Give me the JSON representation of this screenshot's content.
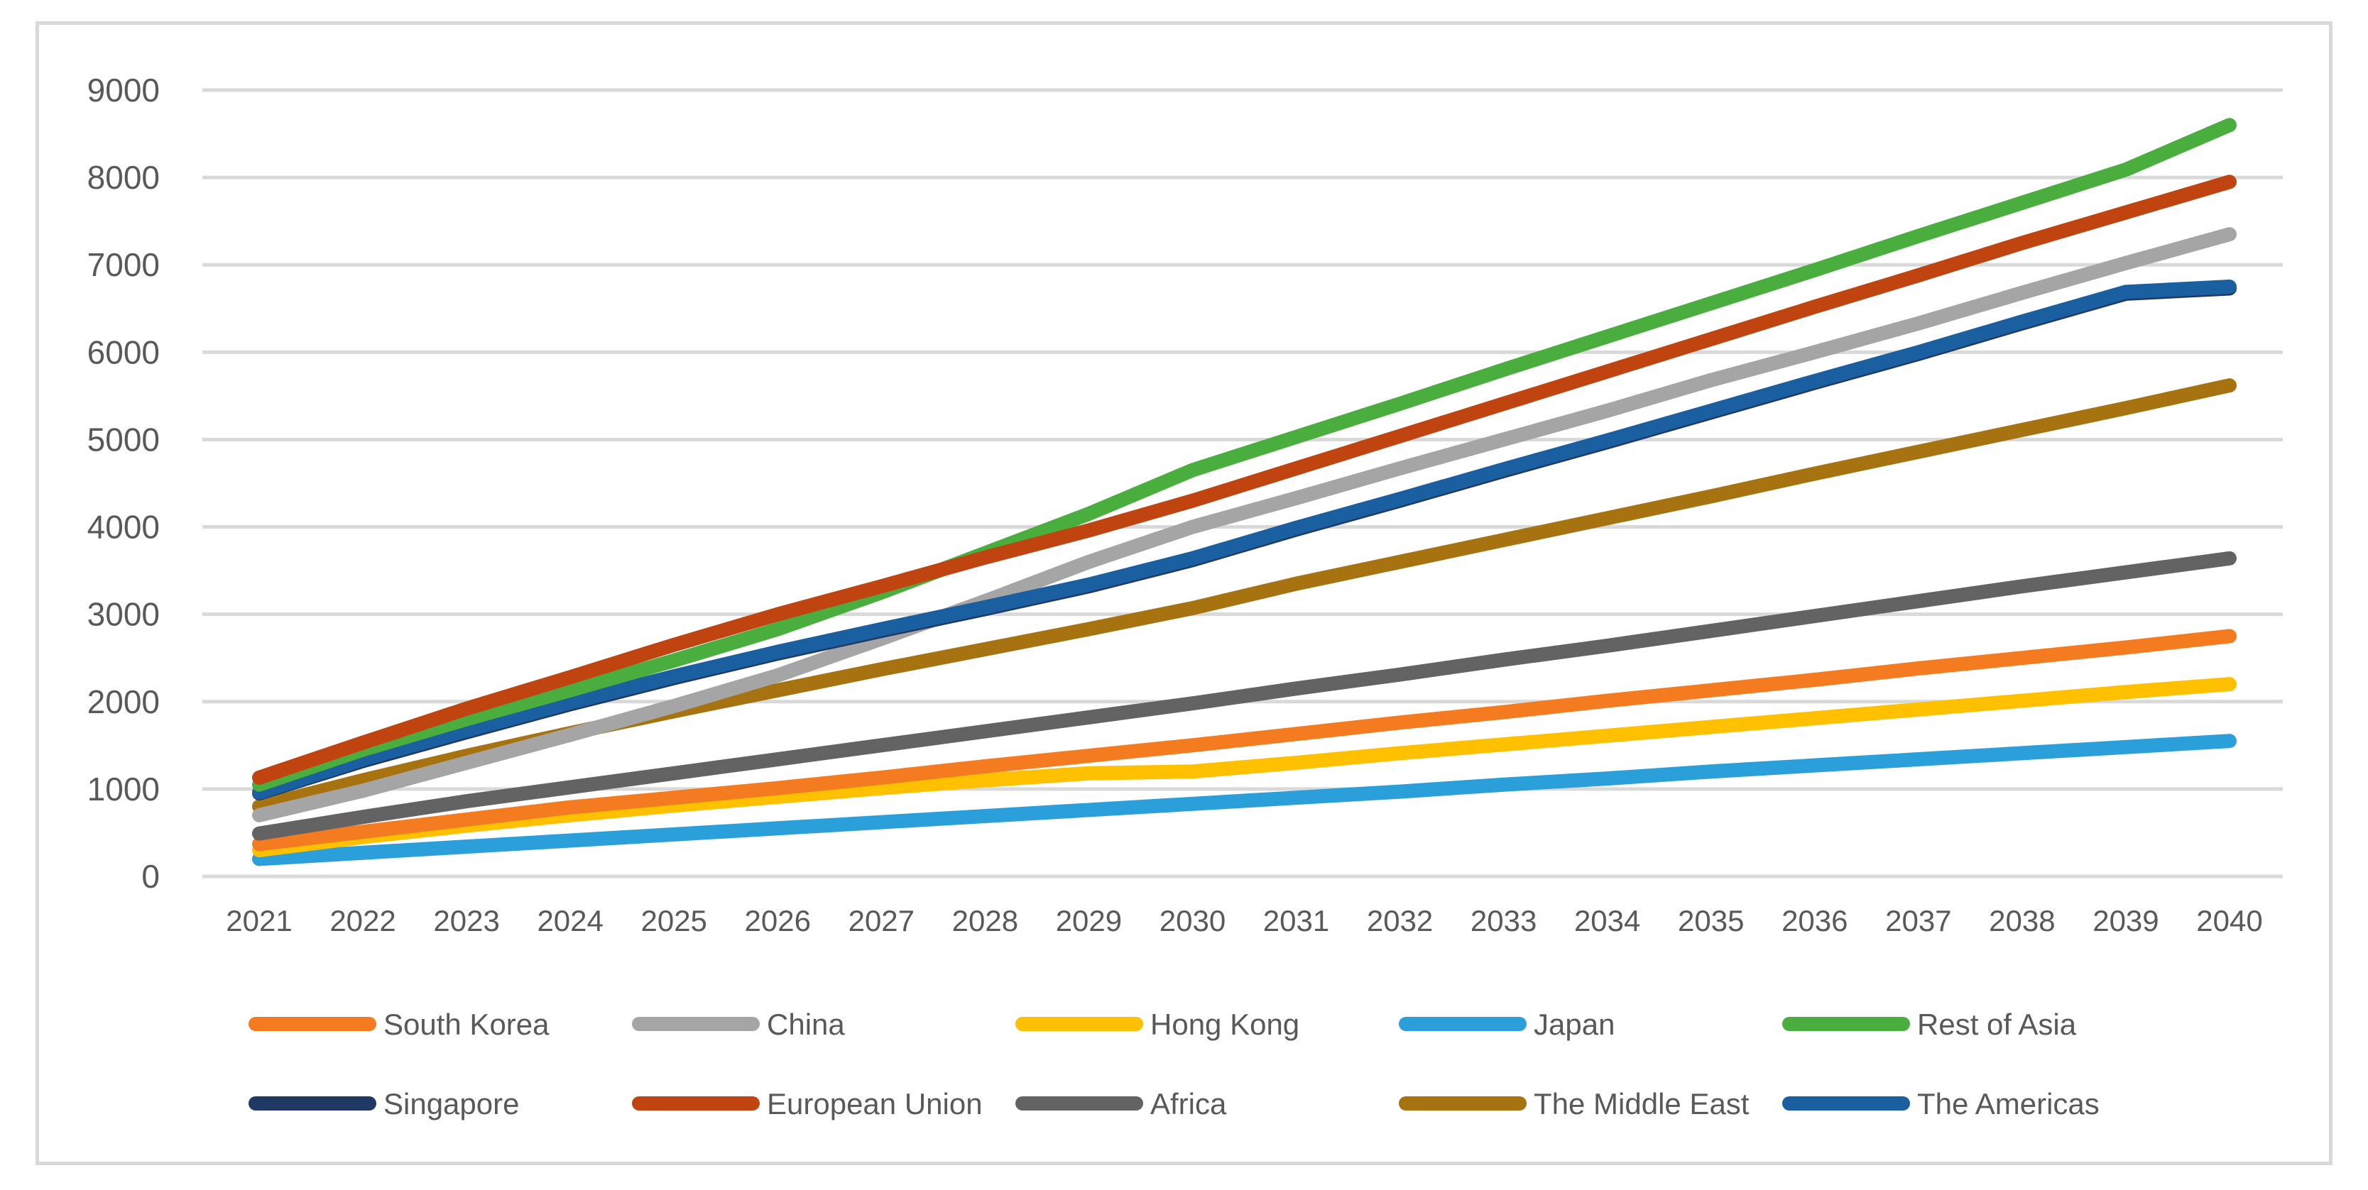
{
  "chart_data": {
    "type": "line",
    "title": "",
    "xlabel": "",
    "ylabel": "",
    "ylim": [
      0,
      9000
    ],
    "yticks": [
      "0",
      "1000",
      "2000",
      "3000",
      "4000",
      "5000",
      "6000",
      "7000",
      "8000",
      "9000"
    ],
    "grid": true,
    "legend_position": "bottom",
    "x": [
      "2021",
      "2022",
      "2023",
      "2024",
      "2025",
      "2026",
      "2027",
      "2028",
      "2029",
      "2030",
      "2031",
      "2032",
      "2033",
      "2034",
      "2035",
      "2036",
      "2037",
      "2038",
      "2039",
      "2040"
    ],
    "series": [
      {
        "name": "South Korea",
        "color": "#f47b20",
        "values": [
          370,
          510,
          650,
          790,
          900,
          1010,
          1130,
          1260,
          1380,
          1500,
          1630,
          1760,
          1880,
          2010,
          2130,
          2250,
          2380,
          2500,
          2620,
          2750
        ]
      },
      {
        "name": "China",
        "color": "#a5a5a5",
        "values": [
          700,
          980,
          1300,
          1620,
          1950,
          2300,
          2720,
          3150,
          3600,
          4000,
          4330,
          4670,
          5000,
          5330,
          5680,
          6000,
          6330,
          6680,
          7020,
          7350
        ]
      },
      {
        "name": "Hong Kong",
        "color": "#ffc000",
        "values": [
          300,
          450,
          580,
          700,
          810,
          910,
          1010,
          1100,
          1180,
          1200,
          1300,
          1410,
          1510,
          1610,
          1710,
          1810,
          1910,
          2010,
          2110,
          2200
        ]
      },
      {
        "name": "Japan",
        "color": "#2b9fd9",
        "values": [
          200,
          270,
          340,
          410,
          480,
          550,
          620,
          690,
          760,
          830,
          900,
          970,
          1050,
          1120,
          1200,
          1270,
          1340,
          1410,
          1480,
          1550
        ]
      },
      {
        "name": "Rest of Asia",
        "color": "#4aae3f",
        "values": [
          1050,
          1450,
          1800,
          2130,
          2470,
          2830,
          3250,
          3700,
          4150,
          4650,
          5030,
          5410,
          5800,
          6180,
          6560,
          6940,
          7330,
          7710,
          8090,
          8600
        ]
      },
      {
        "name": "Singapore",
        "color": "#1f3864",
        "values": [
          950,
          1320,
          1650,
          1970,
          2270,
          2550,
          2810,
          3060,
          3320,
          3620,
          3970,
          4300,
          4640,
          4970,
          5310,
          5650,
          5980,
          6330,
          6670,
          6730
        ]
      },
      {
        "name": "European Union",
        "color": "#c0440f",
        "values": [
          1130,
          1530,
          1920,
          2280,
          2650,
          3000,
          3320,
          3650,
          3960,
          4300,
          4670,
          5040,
          5410,
          5780,
          6150,
          6520,
          6880,
          7250,
          7600,
          7950
        ]
      },
      {
        "name": "Africa",
        "color": "#636363",
        "values": [
          490,
          680,
          860,
          1020,
          1180,
          1340,
          1500,
          1660,
          1820,
          1980,
          2150,
          2310,
          2480,
          2640,
          2810,
          2980,
          3150,
          3320,
          3480,
          3640
        ]
      },
      {
        "name": "The Middle East",
        "color": "#a67310",
        "values": [
          800,
          1100,
          1380,
          1640,
          1890,
          2130,
          2370,
          2600,
          2830,
          3070,
          3350,
          3600,
          3850,
          4100,
          4350,
          4610,
          4860,
          5110,
          5360,
          5620
        ]
      },
      {
        "name": "The Americas",
        "color": "#1a5fa0",
        "values": [
          960,
          1340,
          1670,
          1990,
          2290,
          2570,
          2830,
          3080,
          3340,
          3640,
          3990,
          4320,
          4660,
          4990,
          5330,
          5670,
          6000,
          6350,
          6690,
          6750
        ]
      }
    ]
  }
}
